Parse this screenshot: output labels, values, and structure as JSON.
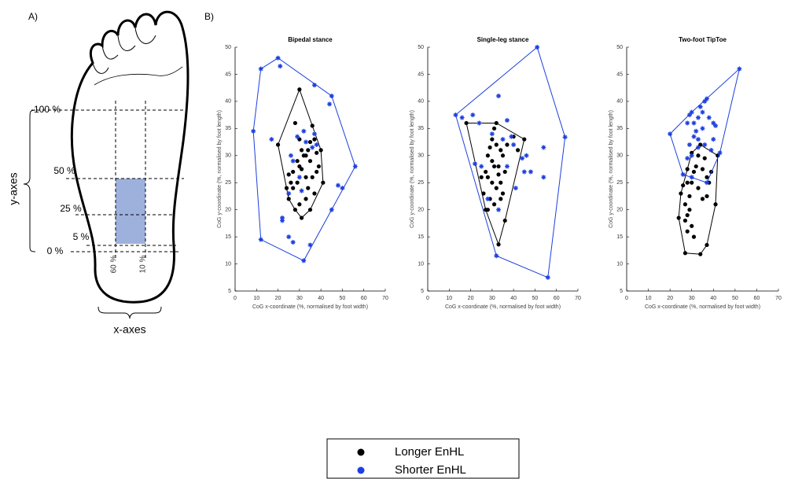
{
  "panel_a": {
    "label": "A)",
    "y_levels": [
      "100 %",
      "50 %",
      "25 %",
      "5 %",
      "0 %"
    ],
    "x_levels": [
      "60 %",
      "10 %"
    ],
    "y_axis_label": "y-axes",
    "x_axis_label": "x-axes"
  },
  "panel_b_label": "B)",
  "chart_data": [
    {
      "type": "scatter",
      "title": "Bipedal stance",
      "x_label": "CoG x-coordinate (%, normalised by foot width)",
      "y_label": "CoG y-coordinate (%, normalised by foot length)",
      "xlim": [
        0,
        70
      ],
      "ylim": [
        5,
        50
      ],
      "xticks": [
        0,
        10,
        20,
        30,
        40,
        50,
        60,
        70
      ],
      "yticks": [
        5,
        10,
        15,
        20,
        25,
        30,
        35,
        40,
        45,
        50
      ],
      "convex_hull": true,
      "series": [
        {
          "name": "Longer EnHL",
          "color": "#000000",
          "marker": "circle",
          "x": [
            30,
            20,
            25,
            31,
            35,
            41,
            40,
            28,
            30,
            31,
            33,
            35,
            36,
            37,
            32,
            34,
            30,
            27,
            25,
            24,
            27,
            29,
            33,
            36,
            38,
            39,
            37,
            33,
            30,
            28,
            26,
            34,
            31,
            29,
            35,
            38
          ],
          "values": [
            42.2,
            32,
            22,
            18.5,
            20,
            25,
            31,
            36,
            33,
            31,
            30,
            29,
            35.5,
            33,
            30,
            31,
            28,
            27,
            26.5,
            24,
            24,
            25,
            26,
            26,
            27,
            28,
            23,
            22,
            21,
            20,
            25,
            24,
            27.5,
            29,
            32.5,
            30.5
          ]
        },
        {
          "name": "Shorter EnHL",
          "color": "#1c3fe0",
          "marker": "asterisk",
          "x": [
            20,
            12,
            8.5,
            12,
            32,
            56,
            45,
            37,
            21,
            17,
            22,
            22,
            25,
            27,
            35,
            45,
            48,
            50,
            44,
            38,
            36,
            32,
            33,
            30,
            27,
            25,
            31,
            26,
            37,
            29
          ],
          "values": [
            48,
            46,
            34.5,
            14.5,
            10.6,
            28,
            41,
            43,
            46.5,
            33,
            18.5,
            18,
            15,
            14,
            13.5,
            20,
            24.5,
            24,
            39.5,
            32,
            31.5,
            34.5,
            32.5,
            26,
            29,
            23,
            23.5,
            30,
            34,
            33.5
          ]
        }
      ]
    },
    {
      "type": "scatter",
      "title": "Single-leg stance",
      "x_label": "CoG x-coordinate (%, normalised by foot width)",
      "y_label": "CoG y-coordinate (%, normalised by foot length)",
      "xlim": [
        0,
        70
      ],
      "ylim": [
        5,
        50
      ],
      "xticks": [
        0,
        10,
        20,
        30,
        40,
        50,
        60,
        70
      ],
      "yticks": [
        5,
        10,
        15,
        20,
        25,
        30,
        35,
        40,
        45,
        50
      ],
      "convex_hull": true,
      "series": [
        {
          "name": "Longer EnHL",
          "color": "#000000",
          "marker": "circle",
          "x": [
            18,
            27,
            33,
            36,
            45,
            32,
            31,
            30,
            32,
            34,
            28,
            30,
            31,
            33,
            35,
            36,
            27,
            28,
            30,
            32,
            34,
            26,
            29,
            31,
            28,
            34,
            37,
            40,
            42,
            25,
            29,
            33,
            35
          ],
          "values": [
            36,
            20,
            13.6,
            18,
            33,
            36,
            35,
            33,
            32,
            31,
            30,
            29,
            28,
            28,
            30,
            27,
            27,
            26,
            25,
            24,
            25,
            23,
            22,
            21,
            20,
            22,
            32,
            33.5,
            31,
            26,
            31.5,
            26.5,
            23
          ]
        },
        {
          "name": "Shorter EnHL",
          "color": "#1c3fe0",
          "marker": "asterisk",
          "x": [
            13,
            51,
            64,
            56,
            32,
            16,
            21,
            24,
            33,
            37,
            39,
            40,
            44,
            46,
            54,
            45,
            48,
            54,
            37,
            28,
            33,
            25,
            22,
            30,
            35,
            41
          ],
          "values": [
            37.5,
            50,
            33.4,
            7.5,
            11.5,
            37,
            37.5,
            36,
            41,
            36.5,
            33.5,
            32,
            29.5,
            30,
            31.5,
            27,
            27,
            26,
            28,
            22,
            20,
            28,
            28.5,
            34,
            33,
            24
          ]
        }
      ]
    },
    {
      "type": "scatter",
      "title": "Two-foot TipToe",
      "x_label": "CoG x-coordinate (%, normalised by foot width)",
      "y_label": "CoG y-coordinate (%, normalised by foot length)",
      "xlim": [
        0,
        70
      ],
      "ylim": [
        5,
        50
      ],
      "xticks": [
        0,
        10,
        20,
        30,
        40,
        50,
        60,
        70
      ],
      "yticks": [
        5,
        10,
        15,
        20,
        25,
        30,
        35,
        40,
        45,
        50
      ],
      "convex_hull": true,
      "series": [
        {
          "name": "Longer EnHL",
          "color": "#000000",
          "marker": "circle",
          "x": [
            24,
            27,
            34,
            37,
            41,
            42,
            34,
            25,
            26,
            28,
            30,
            31,
            32,
            35,
            37,
            38,
            39,
            33,
            30,
            28,
            27,
            29,
            28,
            30,
            28,
            31,
            35,
            37,
            33,
            36,
            29,
            27
          ],
          "values": [
            18.5,
            12,
            11.8,
            13.5,
            21,
            30,
            32,
            23,
            24.5,
            25,
            25,
            27,
            28,
            27.5,
            26,
            25,
            27,
            30,
            30.5,
            27.5,
            21,
            20,
            19,
            17,
            16,
            15,
            22,
            22.5,
            24,
            29.5,
            22.5,
            18
          ]
        },
        {
          "name": "Shorter EnHL",
          "color": "#1c3fe0",
          "marker": "asterisk",
          "x": [
            20,
            52,
            43,
            37,
            30,
            28,
            29,
            30,
            31,
            32,
            33,
            34,
            35,
            36,
            37,
            38,
            40,
            40,
            39,
            36,
            33,
            31,
            29,
            28,
            30,
            35,
            33,
            26,
            41
          ],
          "values": [
            34,
            46,
            30.5,
            25,
            26,
            36,
            37.5,
            38,
            36,
            34.5,
            37,
            39,
            38,
            40,
            40.5,
            37,
            36,
            33,
            31,
            32,
            33,
            33.5,
            32,
            29.5,
            30,
            35,
            31.5,
            26.5,
            35.5
          ]
        }
      ]
    }
  ]
}
